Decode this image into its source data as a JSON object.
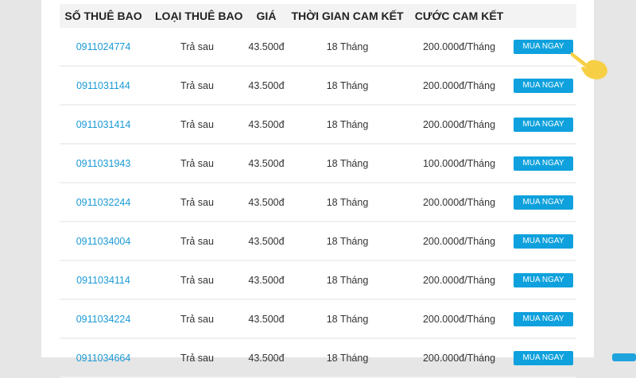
{
  "headers": [
    "SỐ THUÊ BAO",
    "LOẠI THUÊ BAO",
    "GIÁ",
    "THỜI GIAN CAM KẾT",
    "CƯỚC CAM KẾT"
  ],
  "button_label": "MUA NGAY",
  "rows": [
    {
      "number": "0911024774",
      "type": "Trả sau",
      "price": "43.500đ",
      "term": "18 Tháng",
      "fee": "200.000đ/Tháng"
    },
    {
      "number": "0911031144",
      "type": "Trả sau",
      "price": "43.500đ",
      "term": "18 Tháng",
      "fee": "200.000đ/Tháng"
    },
    {
      "number": "0911031414",
      "type": "Trả sau",
      "price": "43.500đ",
      "term": "18 Tháng",
      "fee": "200.000đ/Tháng"
    },
    {
      "number": "0911031943",
      "type": "Trả sau",
      "price": "43.500đ",
      "term": "18 Tháng",
      "fee": "100.000đ/Tháng"
    },
    {
      "number": "0911032244",
      "type": "Trả sau",
      "price": "43.500đ",
      "term": "18 Tháng",
      "fee": "200.000đ/Tháng"
    },
    {
      "number": "0911034004",
      "type": "Trả sau",
      "price": "43.500đ",
      "term": "18 Tháng",
      "fee": "200.000đ/Tháng"
    },
    {
      "number": "0911034114",
      "type": "Trả sau",
      "price": "43.500đ",
      "term": "18 Tháng",
      "fee": "200.000đ/Tháng"
    },
    {
      "number": "0911034224",
      "type": "Trả sau",
      "price": "43.500đ",
      "term": "18 Tháng",
      "fee": "200.000đ/Tháng"
    },
    {
      "number": "0911034664",
      "type": "Trả sau",
      "price": "43.500đ",
      "term": "18 Tháng",
      "fee": "200.000đ/Tháng"
    }
  ],
  "colors": {
    "accent": "#0ea1dd",
    "link": "#1a9ad6",
    "hand": "#f7cf45"
  },
  "icons": {
    "cursor": "pointing-hand-icon"
  }
}
